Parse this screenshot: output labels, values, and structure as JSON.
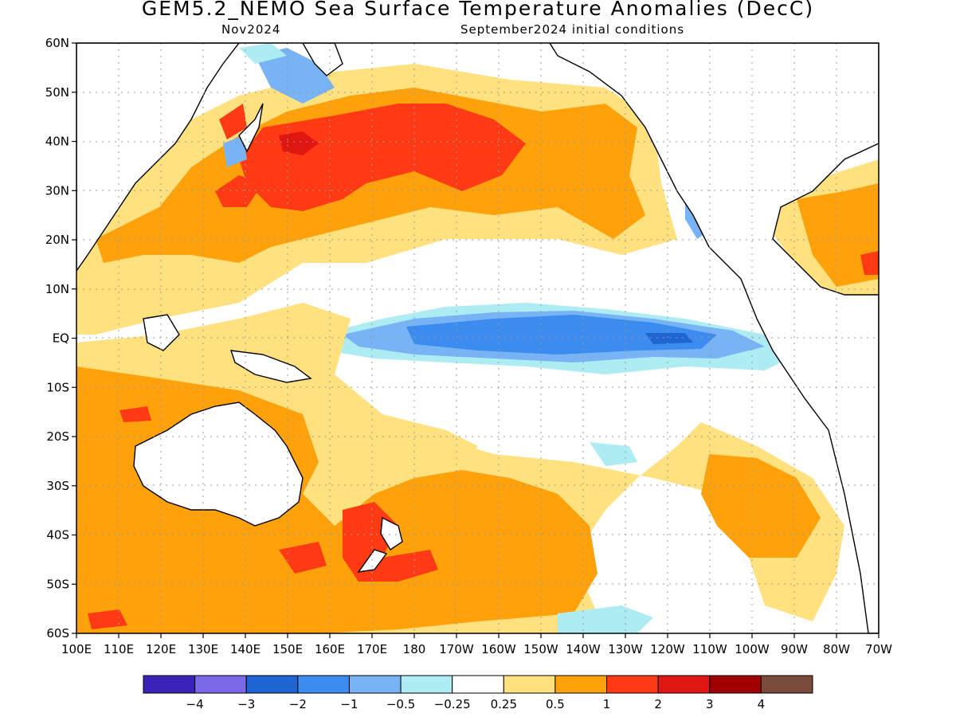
{
  "title": "GEM5.2_NEMO Sea Surface Temperature Anomalies (DecC)",
  "subtitle_left": "Nov2024",
  "subtitle_right": "September2024 initial conditions",
  "lat_labels": [
    "60N",
    "50N",
    "40N",
    "30N",
    "20N",
    "10N",
    "EQ",
    "10S",
    "20S",
    "30S",
    "40S",
    "50S",
    "60S"
  ],
  "lon_labels": [
    "100E",
    "110E",
    "120E",
    "130E",
    "140E",
    "150E",
    "160E",
    "170E",
    "180",
    "170W",
    "160W",
    "150W",
    "140W",
    "130W",
    "120W",
    "110W",
    "100W",
    "90W",
    "80W",
    "70W"
  ],
  "colorbar": {
    "colors": [
      "#3b22b8",
      "#7a6ae8",
      "#1e64d2",
      "#3c8cf0",
      "#78b4f5",
      "#aeecf4",
      "#ffffff",
      "#ffe17f",
      "#ffa10a",
      "#ff3a14",
      "#df1612",
      "#a00000",
      "#7a4a3c"
    ],
    "labels": [
      "−4",
      "−3",
      "−2",
      "−1",
      "−0.5",
      "−0.25",
      "0.25",
      "0.5",
      "1",
      "2",
      "3",
      "4"
    ]
  }
}
